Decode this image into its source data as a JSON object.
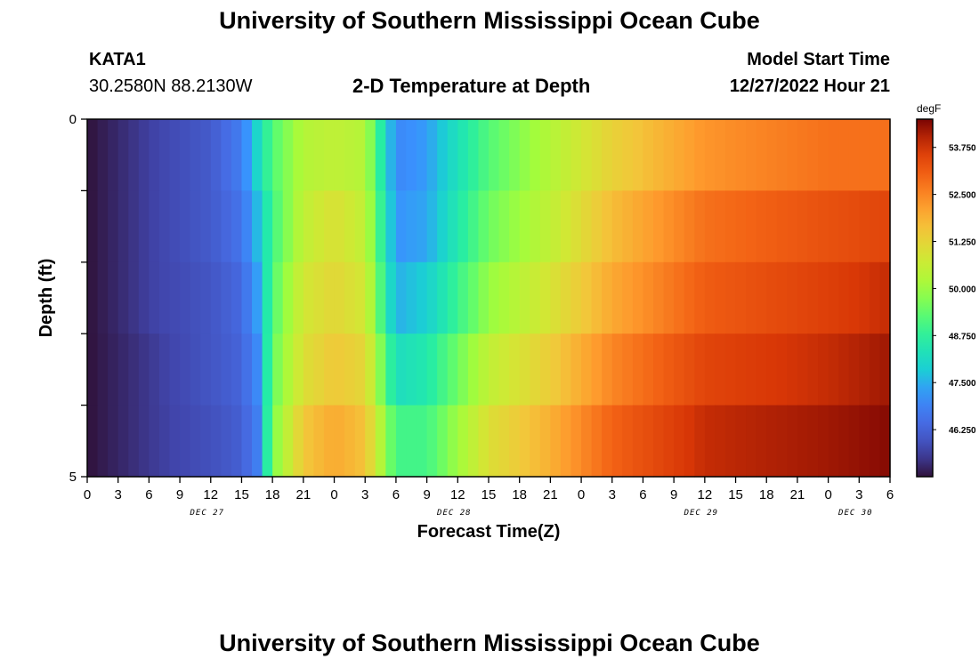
{
  "header": {
    "title": "University of Southern Mississippi Ocean Cube",
    "station_id": "KATA1",
    "station_coords": "30.2580N  88.2130W",
    "plot_title": "2-D Temperature at Depth",
    "model_start_label": "Model Start Time",
    "model_start_value": "12/27/2022 Hour 21"
  },
  "footer": {
    "title": "University of Southern Mississippi Ocean Cube"
  },
  "chart_data": {
    "type": "heatmap",
    "title": "2-D Temperature at Depth",
    "xlabel": "Forecast Time(Z)",
    "ylabel": "Depth (ft)",
    "x_tick_labels": [
      "0",
      "3",
      "6",
      "9",
      "12",
      "15",
      "18",
      "21",
      "0",
      "3",
      "6",
      "9",
      "12",
      "15",
      "18",
      "21",
      "0",
      "3",
      "6",
      "9",
      "12",
      "15",
      "18",
      "21",
      "0",
      "3",
      "6"
    ],
    "x_date_labels": [
      {
        "label": "DEC 27",
        "tick_index": 4
      },
      {
        "label": "DEC 28",
        "tick_index": 12
      },
      {
        "label": "DEC 29",
        "tick_index": 20
      },
      {
        "label": "DEC 30",
        "tick_index": 25
      }
    ],
    "y_tick_labels": [
      {
        "value": 0,
        "label": "0"
      },
      {
        "value": 5,
        "label": "5"
      }
    ],
    "ylim": [
      0,
      5
    ],
    "depth_layers": 5,
    "colorbar": {
      "unit": "degF",
      "min": 45.0,
      "max": 54.5,
      "tick_values": [
        53.75,
        52.5,
        51.25,
        50.0,
        48.75,
        47.5,
        46.25
      ],
      "tick_labels": [
        "53.750",
        "52.500",
        "51.250",
        "50.000",
        "48.750",
        "47.500",
        "46.250"
      ],
      "colormap": "turbo"
    },
    "temperature_keyframes": {
      "hours": [
        0,
        6,
        12,
        15,
        16.5,
        18,
        21,
        24,
        27,
        30,
        33,
        36,
        39,
        45,
        51,
        60,
        72,
        78
      ],
      "layers": [
        [
          45.0,
          45.6,
          46.1,
          46.8,
          48.0,
          49.2,
          50.3,
          50.5,
          50.3,
          47.0,
          47.3,
          48.3,
          49.2,
          50.3,
          51.3,
          52.3,
          52.8,
          52.8
        ],
        [
          45.0,
          45.6,
          46.1,
          46.6,
          47.6,
          49.0,
          50.5,
          51.0,
          50.5,
          47.2,
          47.4,
          48.5,
          49.5,
          50.5,
          51.7,
          52.8,
          53.3,
          53.5
        ],
        [
          45.0,
          45.6,
          46.0,
          46.4,
          47.3,
          49.2,
          50.8,
          51.2,
          50.8,
          47.5,
          47.9,
          48.9,
          49.9,
          50.9,
          52.0,
          53.1,
          53.6,
          53.9
        ],
        [
          45.0,
          45.5,
          46.0,
          46.3,
          47.0,
          49.4,
          51.0,
          51.5,
          51.2,
          48.2,
          48.5,
          49.5,
          50.5,
          51.4,
          52.5,
          53.5,
          53.9,
          54.2
        ],
        [
          45.0,
          45.5,
          45.9,
          46.2,
          46.8,
          49.6,
          51.5,
          52.0,
          51.6,
          49.0,
          49.0,
          50.0,
          51.0,
          51.9,
          53.0,
          53.9,
          54.2,
          54.4
        ]
      ]
    }
  }
}
